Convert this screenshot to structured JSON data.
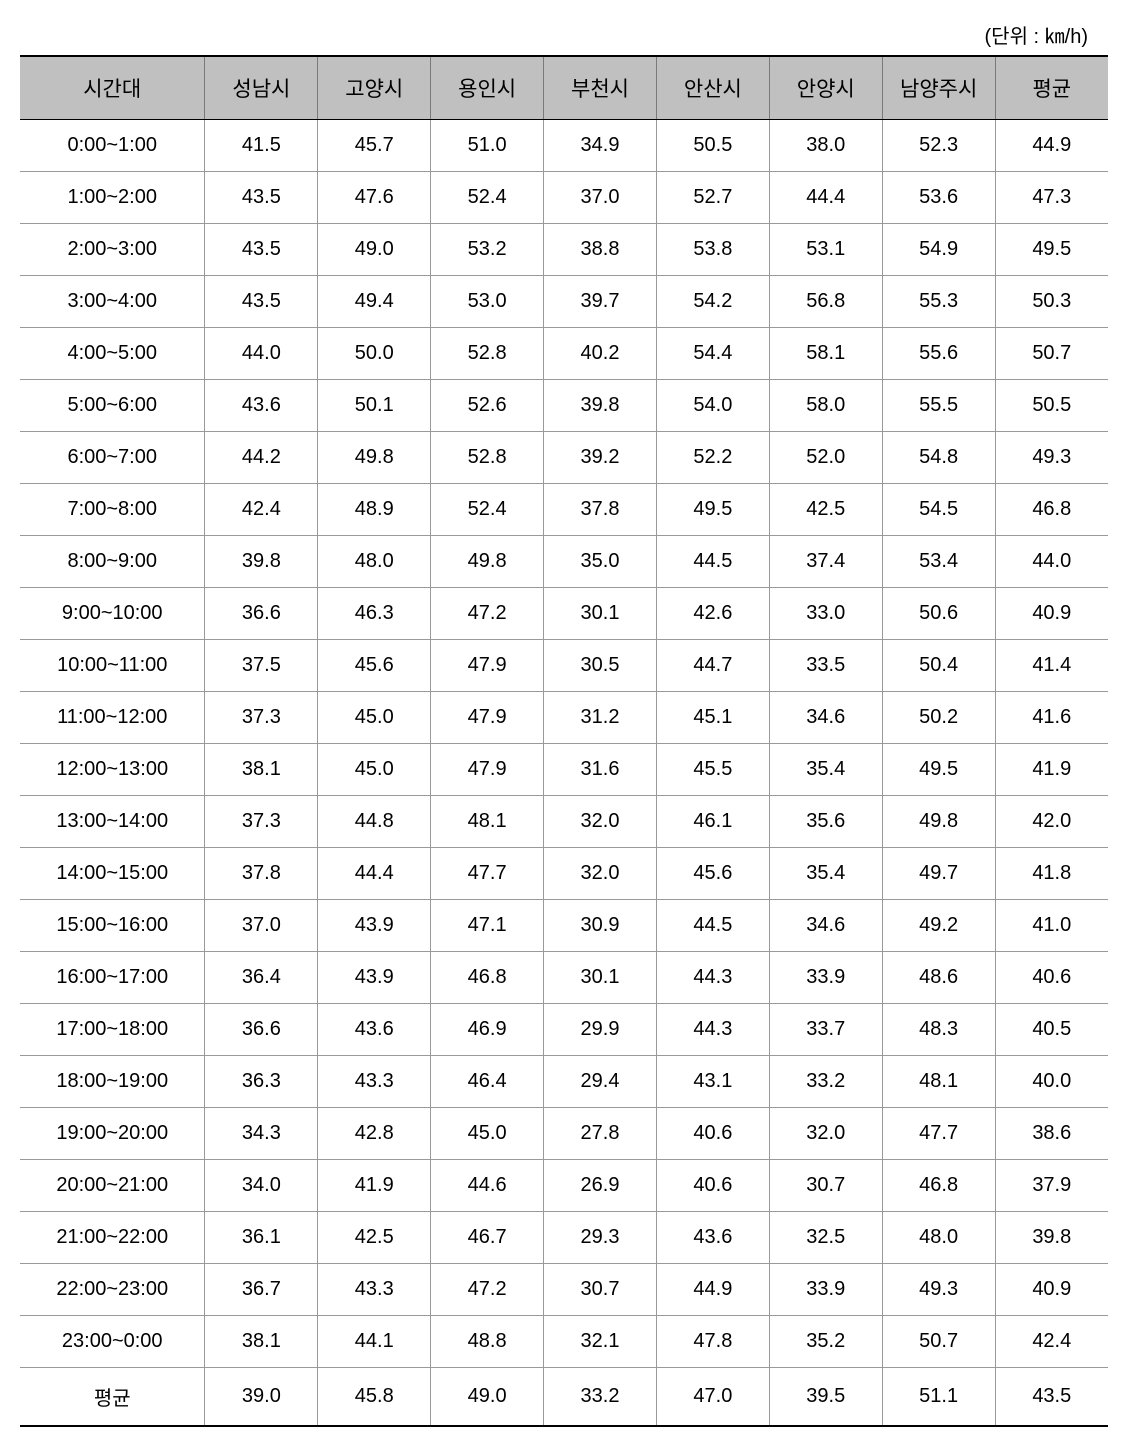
{
  "unit_label": "(단위 : ㎞/h)",
  "table": {
    "columns": [
      "시간대",
      "성남시",
      "고양시",
      "용인시",
      "부천시",
      "안산시",
      "안양시",
      "남양주시",
      "평균"
    ],
    "rows": [
      [
        "0:00~1:00",
        "41.5",
        "45.7",
        "51.0",
        "34.9",
        "50.5",
        "38.0",
        "52.3",
        "44.9"
      ],
      [
        "1:00~2:00",
        "43.5",
        "47.6",
        "52.4",
        "37.0",
        "52.7",
        "44.4",
        "53.6",
        "47.3"
      ],
      [
        "2:00~3:00",
        "43.5",
        "49.0",
        "53.2",
        "38.8",
        "53.8",
        "53.1",
        "54.9",
        "49.5"
      ],
      [
        "3:00~4:00",
        "43.5",
        "49.4",
        "53.0",
        "39.7",
        "54.2",
        "56.8",
        "55.3",
        "50.3"
      ],
      [
        "4:00~5:00",
        "44.0",
        "50.0",
        "52.8",
        "40.2",
        "54.4",
        "58.1",
        "55.6",
        "50.7"
      ],
      [
        "5:00~6:00",
        "43.6",
        "50.1",
        "52.6",
        "39.8",
        "54.0",
        "58.0",
        "55.5",
        "50.5"
      ],
      [
        "6:00~7:00",
        "44.2",
        "49.8",
        "52.8",
        "39.2",
        "52.2",
        "52.0",
        "54.8",
        "49.3"
      ],
      [
        "7:00~8:00",
        "42.4",
        "48.9",
        "52.4",
        "37.8",
        "49.5",
        "42.5",
        "54.5",
        "46.8"
      ],
      [
        "8:00~9:00",
        "39.8",
        "48.0",
        "49.8",
        "35.0",
        "44.5",
        "37.4",
        "53.4",
        "44.0"
      ],
      [
        "9:00~10:00",
        "36.6",
        "46.3",
        "47.2",
        "30.1",
        "42.6",
        "33.0",
        "50.6",
        "40.9"
      ],
      [
        "10:00~11:00",
        "37.5",
        "45.6",
        "47.9",
        "30.5",
        "44.7",
        "33.5",
        "50.4",
        "41.4"
      ],
      [
        "11:00~12:00",
        "37.3",
        "45.0",
        "47.9",
        "31.2",
        "45.1",
        "34.6",
        "50.2",
        "41.6"
      ],
      [
        "12:00~13:00",
        "38.1",
        "45.0",
        "47.9",
        "31.6",
        "45.5",
        "35.4",
        "49.5",
        "41.9"
      ],
      [
        "13:00~14:00",
        "37.3",
        "44.8",
        "48.1",
        "32.0",
        "46.1",
        "35.6",
        "49.8",
        "42.0"
      ],
      [
        "14:00~15:00",
        "37.8",
        "44.4",
        "47.7",
        "32.0",
        "45.6",
        "35.4",
        "49.7",
        "41.8"
      ],
      [
        "15:00~16:00",
        "37.0",
        "43.9",
        "47.1",
        "30.9",
        "44.5",
        "34.6",
        "49.2",
        "41.0"
      ],
      [
        "16:00~17:00",
        "36.4",
        "43.9",
        "46.8",
        "30.1",
        "44.3",
        "33.9",
        "48.6",
        "40.6"
      ],
      [
        "17:00~18:00",
        "36.6",
        "43.6",
        "46.9",
        "29.9",
        "44.3",
        "33.7",
        "48.3",
        "40.5"
      ],
      [
        "18:00~19:00",
        "36.3",
        "43.3",
        "46.4",
        "29.4",
        "43.1",
        "33.2",
        "48.1",
        "40.0"
      ],
      [
        "19:00~20:00",
        "34.3",
        "42.8",
        "45.0",
        "27.8",
        "40.6",
        "32.0",
        "47.7",
        "38.6"
      ],
      [
        "20:00~21:00",
        "34.0",
        "41.9",
        "44.6",
        "26.9",
        "40.6",
        "30.7",
        "46.8",
        "37.9"
      ],
      [
        "21:00~22:00",
        "36.1",
        "42.5",
        "46.7",
        "29.3",
        "43.6",
        "32.5",
        "48.0",
        "39.8"
      ],
      [
        "22:00~23:00",
        "36.7",
        "43.3",
        "47.2",
        "30.7",
        "44.9",
        "33.9",
        "49.3",
        "40.9"
      ],
      [
        "23:00~0:00",
        "38.1",
        "44.1",
        "48.8",
        "32.1",
        "47.8",
        "35.2",
        "50.7",
        "42.4"
      ],
      [
        "평균",
        "39.0",
        "45.8",
        "49.0",
        "33.2",
        "47.0",
        "39.5",
        "51.1",
        "43.5"
      ]
    ],
    "header_bg": "#c0c0c0",
    "border_color": "#9a9a9a",
    "outer_border_color": "#000000",
    "font_size_header": 21,
    "font_size_cell": 20
  }
}
